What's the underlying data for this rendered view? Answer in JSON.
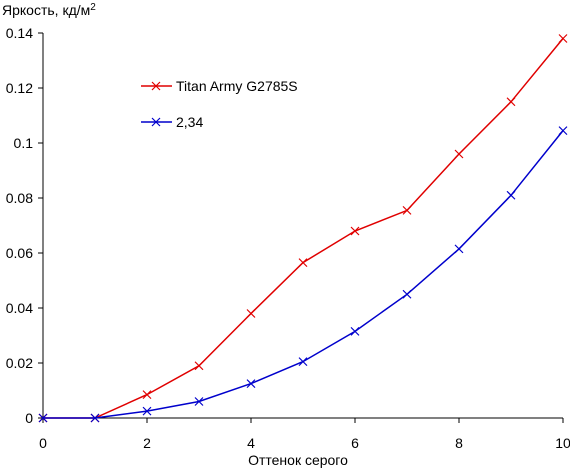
{
  "chart_data": {
    "type": "line",
    "xlabel": "Оттенок серого",
    "ylabel": "Яркость, кд/м",
    "ylabel_sup": "2",
    "xlim": [
      0,
      10
    ],
    "ylim": [
      0,
      0.14
    ],
    "xticks": [
      0,
      2,
      4,
      6,
      8,
      10
    ],
    "yticks": [
      0,
      0.02,
      0.04,
      0.06,
      0.08,
      0.1,
      0.12,
      0.14
    ],
    "grid": false,
    "legend_position": "upper-left-inside",
    "x": [
      0,
      1,
      2,
      3,
      4,
      5,
      6,
      7,
      8,
      9,
      10
    ],
    "series": [
      {
        "name": "Titan Army G2785S",
        "color": "#e00000",
        "marker": "x",
        "values": [
          0,
          0,
          0.0085,
          0.019,
          0.038,
          0.0565,
          0.068,
          0.0755,
          0.096,
          0.115,
          0.138
        ]
      },
      {
        "name": "2,34",
        "color": "#0000cc",
        "marker": "x",
        "values": [
          0,
          0,
          0.0025,
          0.006,
          0.0125,
          0.0205,
          0.0315,
          0.045,
          0.0615,
          0.081,
          0.1045
        ]
      }
    ]
  }
}
